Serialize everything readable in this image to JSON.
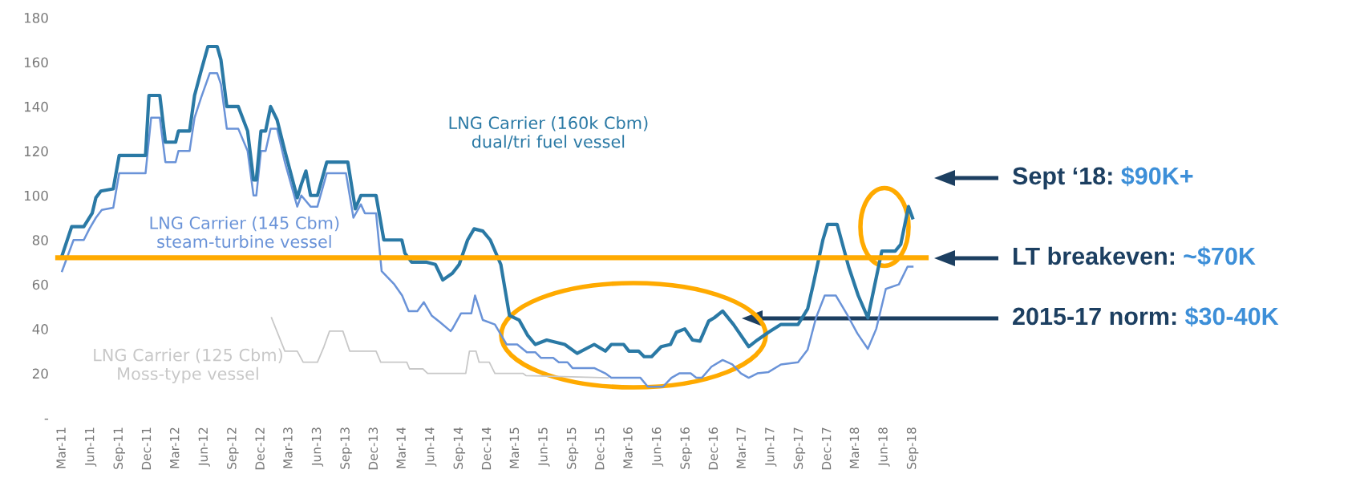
{
  "chart_data": {
    "type": "line",
    "xlim": [
      "2011-02-15",
      "2018-10-15"
    ],
    "ylim": [
      0,
      180
    ],
    "yticks": [
      {
        "value": 0,
        "label": "-"
      },
      20,
      40,
      60,
      80,
      100,
      120,
      140,
      160,
      180
    ],
    "xticks": [
      {
        "value": "2011-03",
        "label": "Mar-11"
      },
      {
        "value": "2011-06",
        "label": "Jun-11"
      },
      {
        "value": "2011-09",
        "label": "Sep-11"
      },
      {
        "value": "2011-12",
        "label": "Dec-11"
      },
      {
        "value": "2012-03",
        "label": "Mar-12"
      },
      {
        "value": "2012-06",
        "label": "Jun-12"
      },
      {
        "value": "2012-09",
        "label": "Sep-12"
      },
      {
        "value": "2012-12",
        "label": "Dec-12"
      },
      {
        "value": "2013-03",
        "label": "Mar-13"
      },
      {
        "value": "2013-06",
        "label": "Jun-13"
      },
      {
        "value": "2013-09",
        "label": "Sep-13"
      },
      {
        "value": "2013-12",
        "label": "Dec-13"
      },
      {
        "value": "2014-03",
        "label": "Mar-14"
      },
      {
        "value": "2014-06",
        "label": "Jun-14"
      },
      {
        "value": "2014-09",
        "label": "Sep-14"
      },
      {
        "value": "2014-12",
        "label": "Dec-14"
      },
      {
        "value": "2015-03",
        "label": "Mar-15"
      },
      {
        "value": "2015-06",
        "label": "Jun-15"
      },
      {
        "value": "2015-09",
        "label": "Sep-15"
      },
      {
        "value": "2015-12",
        "label": "Dec-15"
      },
      {
        "value": "2016-03",
        "label": "Mar-16"
      },
      {
        "value": "2016-06",
        "label": "Jun-16"
      },
      {
        "value": "2016-09",
        "label": "Sep-16"
      },
      {
        "value": "2016-12",
        "label": "Dec-16"
      },
      {
        "value": "2017-03",
        "label": "Mar-17"
      },
      {
        "value": "2017-06",
        "label": "Jun-17"
      },
      {
        "value": "2017-09",
        "label": "Sep-17"
      },
      {
        "value": "2017-12",
        "label": "Dec-17"
      },
      {
        "value": "2018-03",
        "label": "Mar-18"
      },
      {
        "value": "2018-06",
        "label": "Jun-18"
      },
      {
        "value": "2018-09",
        "label": "Sep-18"
      }
    ],
    "series": [
      {
        "name": "LNG Carrier (125 Cbm)\nMoss-type vessel",
        "color": "#c8c8c8",
        "x": [
          "2013-01-04",
          "2013-02-16",
          "2013-03-28",
          "2013-04-16",
          "2013-06-01",
          "2013-06-22",
          "2013-07-10",
          "2013-08-22",
          "2013-09-13",
          "2013-12-07",
          "2013-12-22",
          "2014-03-16",
          "2014-03-25",
          "2014-05-07",
          "2014-05-22",
          "2014-09-22",
          "2014-10-04",
          "2014-10-25",
          "2014-11-04",
          "2014-12-07",
          "2014-12-25",
          "2015-03-25",
          "2015-04-04",
          "2015-12-25"
        ],
        "values": [
          45,
          30,
          30,
          25,
          25,
          32,
          39,
          39,
          30,
          30,
          25,
          25,
          22,
          22,
          20,
          20,
          30,
          30,
          25,
          25,
          20,
          20,
          19,
          18
        ]
      },
      {
        "name": "LNG Carrier (145 Cbm)\nsteam-turbine vessel",
        "color": "#6a93d8",
        "x": [
          "2011-03-01",
          "2011-04-07",
          "2011-05-10",
          "2011-05-28",
          "2011-06-18",
          "2011-07-07",
          "2011-08-13",
          "2011-09-01",
          "2011-11-25",
          "2011-12-13",
          "2012-01-10",
          "2012-01-28",
          "2012-03-01",
          "2012-03-10",
          "2012-04-15",
          "2012-05-01",
          "2012-05-22",
          "2012-06-19",
          "2012-07-13",
          "2012-07-25",
          "2012-08-13",
          "2012-09-19",
          "2012-10-19",
          "2012-11-07",
          "2012-11-16",
          "2012-12-01",
          "2012-12-16",
          "2013-01-01",
          "2013-01-22",
          "2013-02-16",
          "2013-03-28",
          "2013-04-10",
          "2013-05-10",
          "2013-06-01",
          "2013-07-01",
          "2013-09-01",
          "2013-09-25",
          "2013-10-19",
          "2013-11-01",
          "2013-12-07",
          "2013-12-25",
          "2014-02-04",
          "2014-03-01",
          "2014-03-22",
          "2014-04-19",
          "2014-05-10",
          "2014-06-04",
          "2014-07-01",
          "2014-08-04",
          "2014-08-10",
          "2014-09-07",
          "2014-10-10",
          "2014-10-22",
          "2014-11-16",
          "2014-12-25",
          "2015-02-01",
          "2015-03-07",
          "2015-04-07",
          "2015-05-04",
          "2015-05-22",
          "2015-07-01",
          "2015-07-19",
          "2015-08-16",
          "2015-09-01",
          "2015-11-10",
          "2015-12-16",
          "2016-01-04",
          "2016-04-07",
          "2016-05-01",
          "2016-06-19",
          "2016-07-16",
          "2016-08-10",
          "2016-09-16",
          "2016-10-04",
          "2016-10-22",
          "2016-11-22",
          "2016-12-28",
          "2017-01-28",
          "2017-02-25",
          "2017-03-22",
          "2017-04-19",
          "2017-05-25",
          "2017-07-04",
          "2017-08-28",
          "2017-09-28",
          "2017-10-25",
          "2017-11-22",
          "2017-12-28",
          "2018-02-04",
          "2018-03-07",
          "2018-04-10",
          "2018-05-07",
          "2018-06-07",
          "2018-07-19",
          "2018-08-16",
          "2018-09-01"
        ],
        "values": [
          66,
          80,
          80,
          85,
          90,
          93.5,
          94.5,
          110,
          110,
          135,
          135,
          115,
          115,
          120,
          120,
          135,
          144,
          155,
          155,
          150,
          130,
          130,
          120,
          100,
          100,
          120,
          120,
          130,
          130,
          115,
          95,
          100,
          95,
          95,
          110,
          110,
          90,
          96,
          92,
          92,
          66,
          60,
          55,
          48,
          48,
          52,
          46,
          43,
          39,
          40,
          47,
          47,
          55,
          44,
          42,
          33,
          33,
          29.5,
          29.5,
          27,
          27,
          25,
          25,
          22.4,
          22.4,
          20,
          18,
          18,
          14,
          14,
          18,
          20,
          20,
          18,
          18,
          23,
          26,
          24,
          20,
          18,
          20,
          20.6,
          24,
          25,
          30.7,
          45,
          55,
          55,
          46,
          38,
          31,
          40,
          58,
          60,
          68,
          68
        ]
      },
      {
        "name": "LNG Carrier (160k Cbm)\ndual/tri fuel vessel",
        "color": "#2a79a5",
        "x": [
          "2011-03-01",
          "2011-04-01",
          "2011-05-10",
          "2011-06-06",
          "2011-06-18",
          "2011-07-04",
          "2011-08-13",
          "2011-09-01",
          "2011-11-25",
          "2011-12-06",
          "2012-01-10",
          "2012-01-28",
          "2012-03-01",
          "2012-03-10",
          "2012-04-15",
          "2012-05-01",
          "2012-05-22",
          "2012-06-13",
          "2012-07-13",
          "2012-07-25",
          "2012-08-13",
          "2012-09-19",
          "2012-10-19",
          "2012-11-07",
          "2012-11-16",
          "2012-12-01",
          "2012-12-16",
          "2013-01-01",
          "2013-01-22",
          "2013-02-16",
          "2013-03-28",
          "2013-04-10",
          "2013-04-25",
          "2013-05-10",
          "2013-06-01",
          "2013-07-01",
          "2013-09-07",
          "2013-10-01",
          "2013-10-19",
          "2013-12-07",
          "2014-01-01",
          "2014-02-28",
          "2014-03-10",
          "2014-04-01",
          "2014-05-19",
          "2014-06-16",
          "2014-07-10",
          "2014-08-10",
          "2014-09-01",
          "2014-09-28",
          "2014-10-19",
          "2014-11-16",
          "2014-12-10",
          "2015-01-13",
          "2015-02-10",
          "2015-03-13",
          "2015-04-10",
          "2015-05-04",
          "2015-06-10",
          "2015-08-07",
          "2015-09-16",
          "2015-11-10",
          "2015-12-16",
          "2016-01-04",
          "2016-02-13",
          "2016-03-01",
          "2016-04-01",
          "2016-04-19",
          "2016-05-13",
          "2016-06-13",
          "2016-07-13",
          "2016-08-01",
          "2016-08-28",
          "2016-09-22",
          "2016-10-16",
          "2016-11-13",
          "2016-12-01",
          "2016-12-28",
          "2017-02-01",
          "2017-03-22",
          "2017-04-19",
          "2017-05-25",
          "2017-07-04",
          "2017-08-28",
          "2017-09-28",
          "2017-10-16",
          "2017-11-16",
          "2017-12-01",
          "2018-01-01",
          "2018-02-07",
          "2018-03-10",
          "2018-04-10",
          "2018-05-25",
          "2018-07-07",
          "2018-07-25",
          "2018-08-19",
          "2018-09-01"
        ],
        "values": [
          73,
          86,
          86,
          92,
          99,
          102,
          103,
          118,
          118,
          145,
          145,
          124,
          124,
          129,
          129,
          145,
          156,
          167,
          167,
          161,
          140,
          140,
          129,
          107,
          107,
          129,
          129,
          140,
          134,
          120,
          99,
          105,
          111,
          100,
          100,
          115,
          115,
          94,
          100,
          100,
          80,
          80,
          74,
          70,
          70,
          69,
          62,
          65,
          69,
          80,
          85,
          84,
          80,
          69,
          46,
          44,
          37,
          33,
          35,
          33,
          29,
          33,
          30,
          33,
          33,
          30,
          30,
          27.5,
          27.5,
          32,
          33,
          38.5,
          40,
          35,
          34.5,
          43.5,
          45,
          48,
          42,
          32,
          35,
          38.5,
          42,
          42,
          49,
          60,
          80,
          87,
          87,
          68,
          55,
          45,
          75,
          75,
          78,
          95,
          90
        ]
      }
    ],
    "ref_lines": [
      {
        "axis": "y",
        "value": 72,
        "color": "#ffaa00",
        "line_style": "solid"
      }
    ],
    "annotations": [
      "Sept ‘18: $90K+",
      "LT breakeven: ~$70K",
      "2015-17 norm: $30-40K"
    ],
    "marker": "none",
    "line_style": "solid",
    "grid": false
  }
}
